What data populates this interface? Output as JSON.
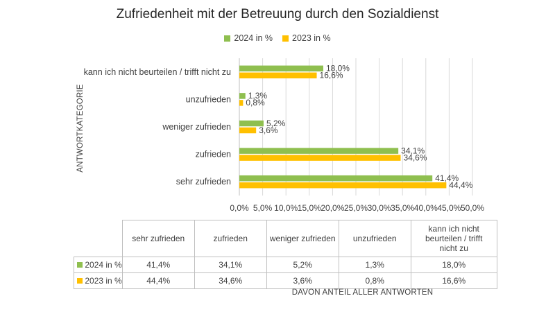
{
  "chart_data": {
    "type": "bar",
    "orientation": "horizontal",
    "title": "Zufriedenheit mit der Betreuung durch den Sozialdienst",
    "ylabel": "ANTWORTKATEGORIE",
    "xlabel": "DAVON ANTEIL ALLER ANTWORTEN",
    "categories": [
      "kann ich nicht beurteilen / trifft nicht zu",
      "unzufrieden",
      "weniger zufrieden",
      "zufrieden",
      "sehr zufrieden"
    ],
    "series": [
      {
        "name": "2024 in %",
        "color": "#8fbf4f",
        "values": [
          18.0,
          1.3,
          5.2,
          34.1,
          41.4
        ],
        "labels": [
          "18,0%",
          "1,3%",
          "5,2%",
          "34,1%",
          "41,4%"
        ]
      },
      {
        "name": "2023 in %",
        "color": "#ffc000",
        "values": [
          16.6,
          0.8,
          3.6,
          34.6,
          44.4
        ],
        "labels": [
          "16,6%",
          "0,8%",
          "3,6%",
          "34,6%",
          "44,4%"
        ]
      }
    ],
    "xlim": [
      0,
      50
    ],
    "xticks": [
      "0,0%",
      "5,0%",
      "10,0%",
      "15,0%",
      "20,0%",
      "25,0%",
      "30,0%",
      "35,0%",
      "40,0%",
      "45,0%",
      "50,0%"
    ],
    "grid": true,
    "legend": "top",
    "table": {
      "columns": [
        "sehr zufrieden",
        "zufrieden",
        "weniger zufrieden",
        "unzufrieden",
        "kann ich nicht beurteilen / trifft nicht zu"
      ],
      "rows": [
        {
          "label": "2024 in %",
          "color": "#8fbf4f",
          "cells": [
            "41,4%",
            "34,1%",
            "5,2%",
            "1,3%",
            "18,0%"
          ]
        },
        {
          "label": "2023 in %",
          "color": "#ffc000",
          "cells": [
            "44,4%",
            "34,6%",
            "3,6%",
            "0,8%",
            "16,6%"
          ]
        }
      ]
    }
  }
}
